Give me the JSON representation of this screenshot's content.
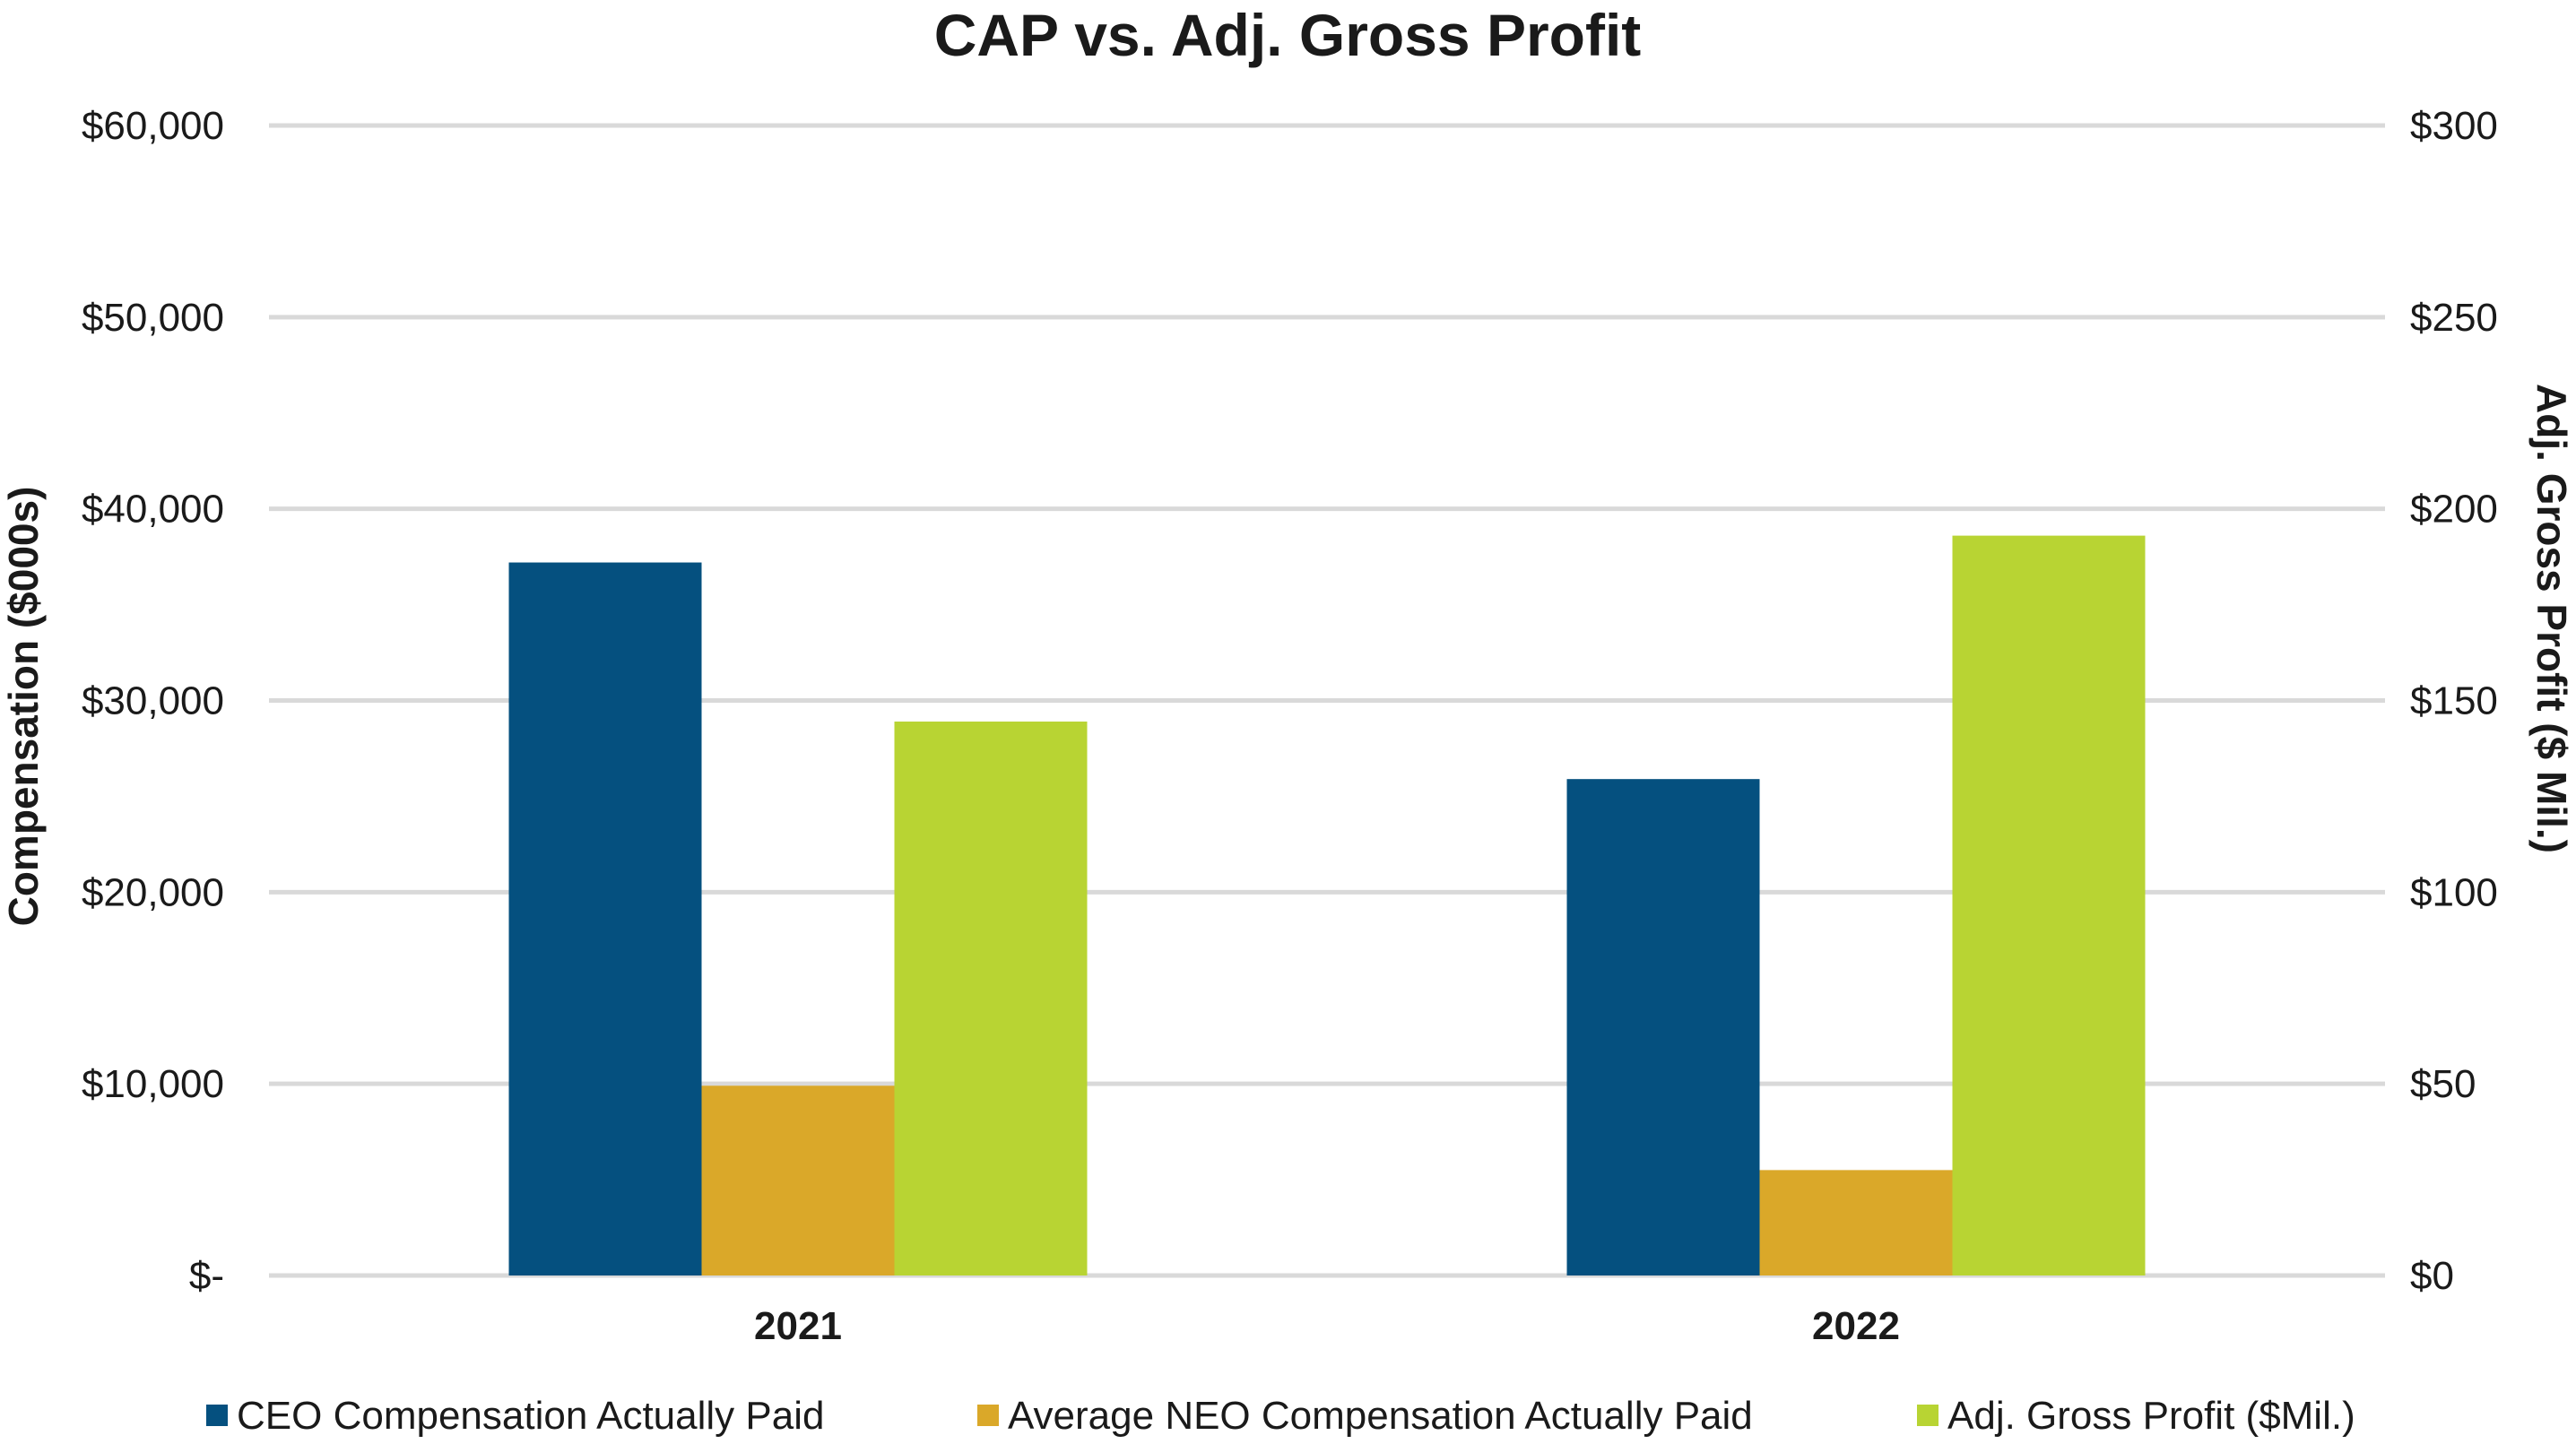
{
  "chart_data": {
    "type": "bar",
    "title": "CAP vs. Adj. Gross Profit",
    "categories": [
      "2021",
      "2022"
    ],
    "ylabel": "Compensation ($000s)",
    "y2label": "Adj. Gross Profit ($ Mil.)",
    "ylim": [
      0,
      60000
    ],
    "y2lim": [
      0,
      300
    ],
    "yticks": [
      0,
      10000,
      20000,
      30000,
      40000,
      50000,
      60000
    ],
    "ytick_labels": [
      "$-",
      "$10,000",
      "$20,000",
      "$30,000",
      "$40,000",
      "$50,000",
      "$60,000"
    ],
    "y2ticks": [
      0,
      50,
      100,
      150,
      200,
      250,
      300
    ],
    "y2tick_labels": [
      "$0",
      "$50",
      "$100",
      "$150",
      "$200",
      "$250",
      "$300"
    ],
    "grid": true,
    "legend_position": "bottom",
    "series": [
      {
        "name": "CEO Compensation Actually Paid",
        "axis": "left",
        "color": "#05507f",
        "values": [
          37200,
          25900
        ]
      },
      {
        "name": "Average NEO Compensation Actually Paid",
        "axis": "left",
        "color": "#daa829",
        "values": [
          9900,
          5500
        ]
      },
      {
        "name": "Adj. Gross Profit ($Mil.)",
        "axis": "right",
        "color": "#b8d433",
        "values": [
          144.5,
          193
        ]
      }
    ]
  }
}
